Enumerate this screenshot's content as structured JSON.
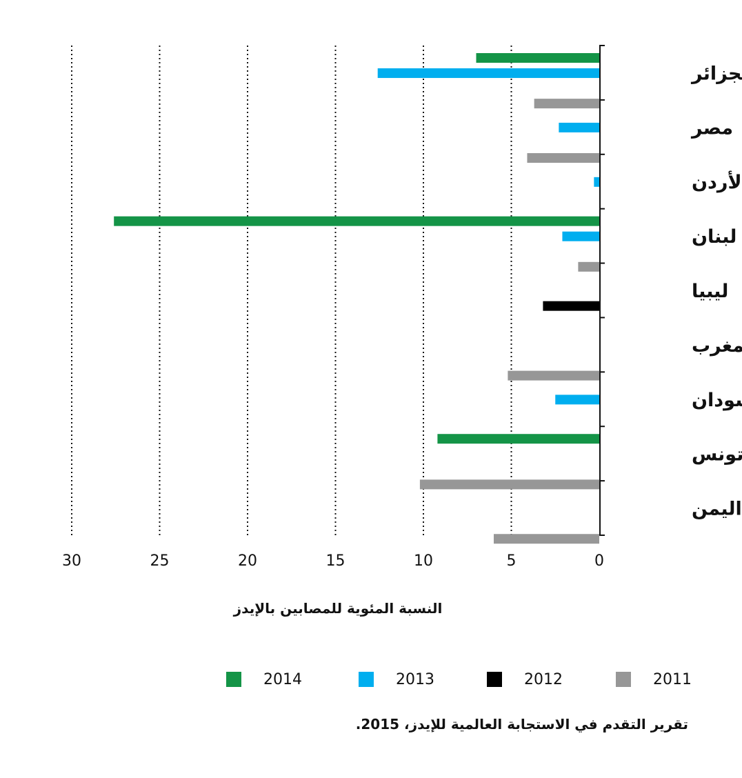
{
  "chart_data": {
    "type": "bar",
    "orientation": "horizontal",
    "categories": [
      "الجزائر",
      "مصر",
      "الأردن",
      "لبنان",
      "ليبيا",
      "المغرب",
      "السودان",
      "تونس",
      "اليمن"
    ],
    "series": [
      {
        "name": "2014",
        "color": "#149447",
        "values": [
          7.0,
          null,
          null,
          27.6,
          null,
          null,
          null,
          9.2,
          null
        ]
      },
      {
        "name": "2013",
        "color": "#00aeef",
        "values": [
          12.6,
          2.3,
          0.3,
          2.1,
          null,
          null,
          2.5,
          null,
          null
        ]
      },
      {
        "name": "2012",
        "color": "#000000",
        "values": [
          null,
          null,
          null,
          null,
          3.2,
          null,
          null,
          null,
          null
        ]
      },
      {
        "name": "2011",
        "color": "#979797",
        "values": [
          3.7,
          4.1,
          null,
          1.2,
          null,
          5.2,
          null,
          10.2,
          6.0
        ]
      }
    ],
    "xlabel": "النسبة المئوية للمصابين بالإيدز",
    "xlim": [
      0,
      30
    ],
    "xticks": [
      0,
      5,
      10,
      15,
      20,
      25,
      30
    ],
    "x_direction": "right-to-left",
    "grid": "vertical-dotted",
    "legend_position": "bottom"
  },
  "source_text": "تقرير التقدم في الاستجابة العالمية للإيدز، 2015."
}
